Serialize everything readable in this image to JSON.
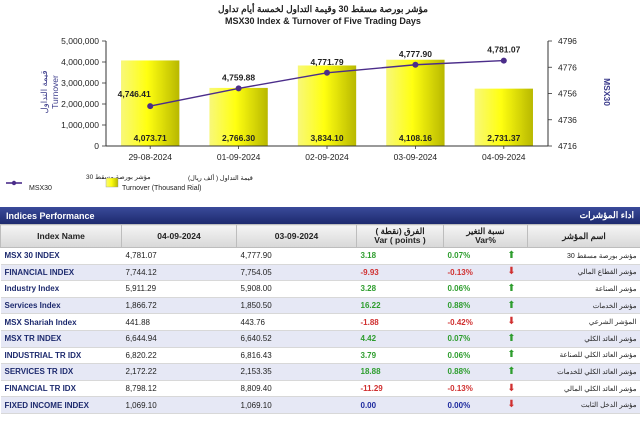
{
  "chart_data": {
    "type": "bar",
    "title_ar": "مؤشر بورصة مسقط 30 وقيمة التداول لخمسة أيام تداول",
    "title_en": "MSX30 Index & Turnover of Five Trading Days",
    "categories": [
      "29-08-2024",
      "01-09-2024",
      "02-09-2024",
      "03-09-2024",
      "04-09-2024"
    ],
    "left_axis": {
      "label_ar": "قيمة التداول",
      "label_en": "Turnover",
      "ticks": [
        "0",
        "1000000",
        "2000000",
        "3000000",
        "4000000",
        "5000000"
      ],
      "ylim": [
        0,
        5000000
      ]
    },
    "right_axis": {
      "label": "MSX30",
      "ticks": [
        "4716",
        "4736",
        "4756",
        "4776",
        "4796"
      ],
      "ylim": [
        4716,
        4796
      ]
    },
    "series": [
      {
        "name_ar": "قيمة التداول ( ألف ريال)",
        "name_en": "Turnover (Thousand Rial)",
        "type": "bar",
        "values": [
          4073710,
          2766300,
          3834100,
          4108160,
          2731370
        ],
        "labels": [
          "4,073.71",
          "2,766.30",
          "3,834.10",
          "4,108.16",
          "2,731.37"
        ],
        "color": "#f5f500"
      },
      {
        "name_ar": "مؤشر بورصة مسقط 30",
        "name_en": "MSX30",
        "type": "line",
        "values": [
          4746.41,
          4759.88,
          4771.79,
          4777.9,
          4781.07
        ],
        "labels": [
          "4,746.41",
          "4,759.88",
          "4,771.79",
          "4,777.90",
          "4,781.07"
        ],
        "color": "#4b2d8a"
      }
    ],
    "left_tick_labels": [
      "0",
      "1,000,000",
      "2,000,000",
      "3,000,000",
      "4,000,000",
      "5,000,000"
    ],
    "legend_position": "bottom-left"
  },
  "panel": {
    "title_en": "Indices Performance",
    "title_ar": "اداء المؤشرات",
    "headers": {
      "index_name": "Index Name",
      "date1": "04-09-2024",
      "date2": "03-09-2024",
      "var_points_ar": "الفرق (نقطة )",
      "var_points_en": "Var ( points )",
      "var_pct_ar": "نسبة التغير",
      "var_pct_en": "Var%",
      "name_ar": "اسم المؤشر"
    },
    "rows": [
      {
        "name": "MSX 30 INDEX",
        "d1": "4,781.07",
        "d2": "4,777.90",
        "pts": "3.18",
        "pct": "0.07%",
        "dir": "up",
        "ar": "مؤشر بورصة مسقط 30"
      },
      {
        "name": "FINANCIAL INDEX",
        "d1": "7,744.12",
        "d2": "7,754.05",
        "pts": "-9.93",
        "pct": "-0.13%",
        "dir": "down",
        "ar": "مؤشر القطاع المالي"
      },
      {
        "name": "Industry Index",
        "d1": "5,911.29",
        "d2": "5,908.00",
        "pts": "3.28",
        "pct": "0.06%",
        "dir": "up",
        "ar": "مؤشر الصناعة"
      },
      {
        "name": "Services Index",
        "d1": "1,866.72",
        "d2": "1,850.50",
        "pts": "16.22",
        "pct": "0.88%",
        "dir": "up",
        "ar": "مؤشر الخدمات"
      },
      {
        "name": "MSX Shariah Index",
        "d1": "441.88",
        "d2": "443.76",
        "pts": "-1.88",
        "pct": "-0.42%",
        "dir": "down",
        "ar": "المؤشر الشرعي"
      },
      {
        "name": "MSX TR INDEX",
        "d1": "6,644.94",
        "d2": "6,640.52",
        "pts": "4.42",
        "pct": "0.07%",
        "dir": "up",
        "ar": "مؤشر العائد الكلي"
      },
      {
        "name": "INDUSTRIAL TR IDX",
        "d1": "6,820.22",
        "d2": "6,816.43",
        "pts": "3.79",
        "pct": "0.06%",
        "dir": "up",
        "ar": "مؤشر العائد الكلي للصناعة"
      },
      {
        "name": "SERVICES TR IDX",
        "d1": "2,172.22",
        "d2": "2,153.35",
        "pts": "18.88",
        "pct": "0.88%",
        "dir": "up",
        "ar": "مؤشر العائد الكلي للخدمات"
      },
      {
        "name": "FINANCIAL TR IDX",
        "d1": "8,798.12",
        "d2": "8,809.40",
        "pts": "-11.29",
        "pct": "-0.13%",
        "dir": "down",
        "ar": "مؤشر العائد الكلي المالي"
      },
      {
        "name": "FIXED INCOME INDEX",
        "d1": "1,069.10",
        "d2": "1,069.10",
        "pts": "0.00",
        "pct": "0.00%",
        "dir": "down",
        "ar": "مؤشر الدخل الثابت"
      }
    ]
  }
}
